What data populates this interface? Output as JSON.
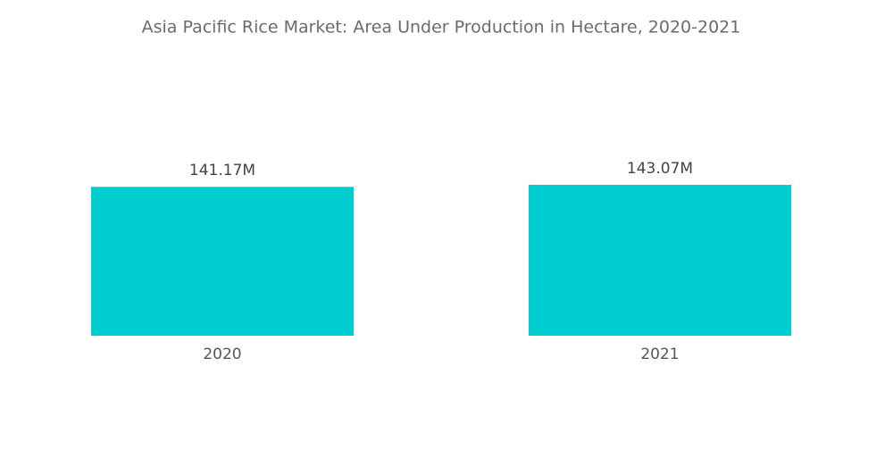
{
  "chart_data": {
    "type": "bar",
    "title": "Asia Pacific Rice Market: Area Under Production in Hectare, 2020-2021",
    "categories": [
      "2020",
      "2021"
    ],
    "values": [
      141.17,
      143.07
    ],
    "value_labels": [
      "141.17M",
      "143.07M"
    ],
    "color": "#00cdd0",
    "ylim": [
      0,
      160
    ]
  }
}
